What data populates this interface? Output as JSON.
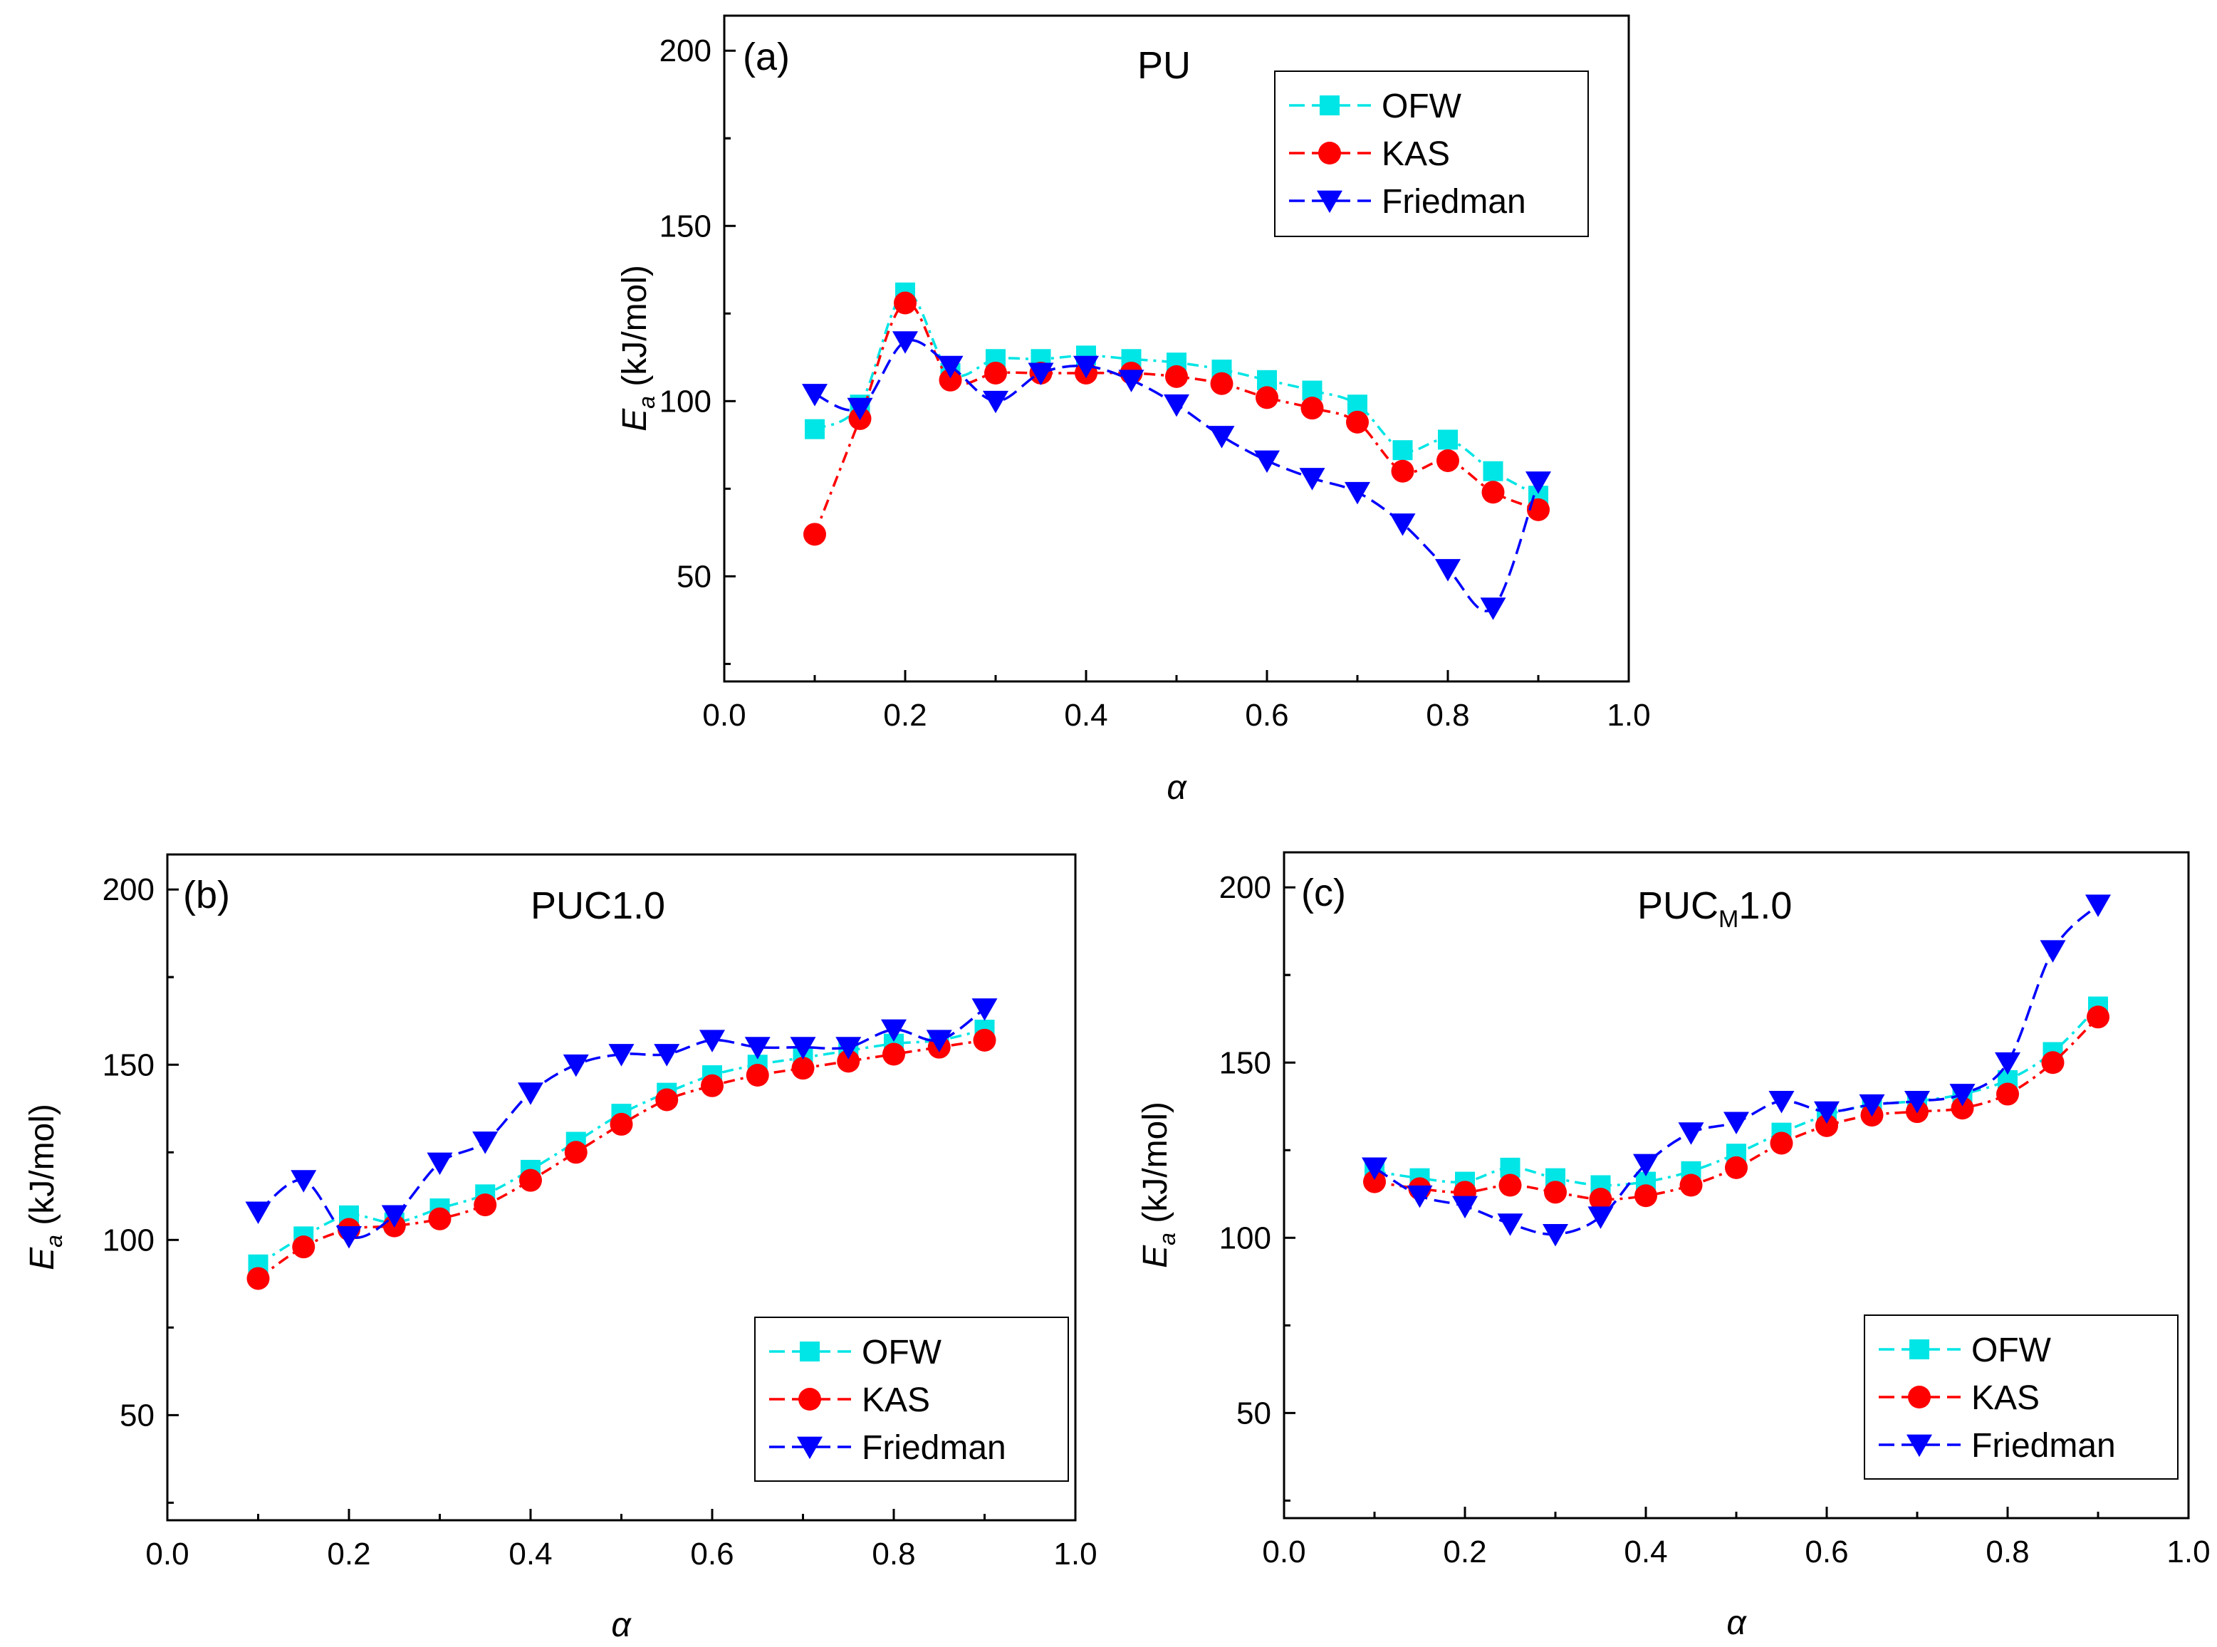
{
  "chart_data": [
    {
      "type": "line",
      "panel_label": "(a)",
      "title": "PU",
      "xlabel": "α",
      "ylabel_main": "E",
      "ylabel_sub": "a",
      "ylabel_unit": " (kJ/mol)",
      "xlim": [
        0.0,
        1.0
      ],
      "ylim": [
        20,
        210
      ],
      "xticks": [
        "0.0",
        "0.2",
        "0.4",
        "0.6",
        "0.8",
        "1.0"
      ],
      "yticks": [
        "50",
        "100",
        "150",
        "200"
      ],
      "legend": "top-right",
      "x": [
        0.1,
        0.15,
        0.2,
        0.25,
        0.3,
        0.35,
        0.4,
        0.45,
        0.5,
        0.55,
        0.6,
        0.65,
        0.7,
        0.75,
        0.8,
        0.85,
        0.9
      ],
      "series": [
        {
          "name": "OFW",
          "color": "#00e5e5",
          "marker": "square",
          "dash": "16 8 4 8",
          "values": [
            92,
            99,
            131,
            108,
            112,
            112,
            113,
            112,
            111,
            109,
            106,
            103,
            99,
            86,
            89,
            80,
            73
          ]
        },
        {
          "name": "KAS",
          "color": "#ff0000",
          "marker": "circle",
          "dash": "16 8 4 8",
          "values": [
            62,
            95,
            128,
            106,
            108,
            108,
            108,
            108,
            107,
            105,
            101,
            98,
            94,
            80,
            83,
            74,
            69
          ]
        },
        {
          "name": "Friedman",
          "color": "#0000ff",
          "marker": "triangle-down",
          "dash": "22 10",
          "values": [
            102,
            98,
            117,
            110,
            100,
            108,
            110,
            106,
            99,
            90,
            83,
            78,
            74,
            65,
            52,
            41,
            77
          ]
        }
      ]
    },
    {
      "type": "line",
      "panel_label": "(b)",
      "title": "PUC1.0",
      "xlabel": "α",
      "ylabel_main": "E",
      "ylabel_sub": "a",
      "ylabel_unit": " (kJ/mol)",
      "xlim": [
        0.0,
        1.0
      ],
      "ylim": [
        20,
        210
      ],
      "xticks": [
        "0.0",
        "0.2",
        "0.4",
        "0.6",
        "0.8",
        "1.0"
      ],
      "yticks": [
        "50",
        "100",
        "150",
        "200"
      ],
      "legend": "bottom-right",
      "x": [
        0.1,
        0.15,
        0.2,
        0.25,
        0.3,
        0.35,
        0.4,
        0.45,
        0.5,
        0.55,
        0.6,
        0.65,
        0.7,
        0.75,
        0.8,
        0.85,
        0.9
      ],
      "series": [
        {
          "name": "OFW",
          "color": "#00e5e5",
          "marker": "square",
          "dash": "16 8 4 8",
          "values": [
            93,
            101,
            107,
            105,
            109,
            113,
            120,
            128,
            136,
            142,
            147,
            150,
            152,
            154,
            156,
            157,
            160
          ]
        },
        {
          "name": "KAS",
          "color": "#ff0000",
          "marker": "circle",
          "dash": "16 8 4 8",
          "values": [
            89,
            98,
            103,
            104,
            106,
            110,
            117,
            125,
            133,
            140,
            144,
            147,
            149,
            151,
            153,
            155,
            157
          ]
        },
        {
          "name": "Friedman",
          "color": "#0000ff",
          "marker": "triangle-down",
          "dash": "22 10",
          "values": [
            108,
            117,
            101,
            107,
            122,
            128,
            142,
            150,
            153,
            153,
            157,
            155,
            155,
            155,
            160,
            157,
            166
          ]
        }
      ]
    },
    {
      "type": "line",
      "panel_label": "(c)",
      "title_main": "PUC",
      "title_sub": "M",
      "title_tail": "1.0",
      "xlabel": "α",
      "ylabel_main": "E",
      "ylabel_sub": "a",
      "ylabel_unit": " (kJ/mol)",
      "xlim": [
        0.0,
        1.0
      ],
      "ylim": [
        20,
        210
      ],
      "xticks": [
        "0.0",
        "0.2",
        "0.4",
        "0.6",
        "0.8",
        "1.0"
      ],
      "yticks": [
        "50",
        "100",
        "150",
        "200"
      ],
      "legend": "bottom-right",
      "x": [
        0.1,
        0.15,
        0.2,
        0.25,
        0.3,
        0.35,
        0.4,
        0.45,
        0.5,
        0.55,
        0.6,
        0.65,
        0.7,
        0.75,
        0.8,
        0.85,
        0.9
      ],
      "series": [
        {
          "name": "OFW",
          "color": "#00e5e5",
          "marker": "square",
          "dash": "16 8 4 8",
          "values": [
            119,
            117,
            116,
            120,
            117,
            115,
            116,
            119,
            124,
            130,
            135,
            138,
            139,
            141,
            145,
            153,
            166
          ]
        },
        {
          "name": "KAS",
          "color": "#ff0000",
          "marker": "circle",
          "dash": "16 8 4 8",
          "values": [
            116,
            114,
            113,
            115,
            113,
            111,
            112,
            115,
            120,
            127,
            132,
            135,
            136,
            137,
            141,
            150,
            163
          ]
        },
        {
          "name": "Friedman",
          "color": "#0000ff",
          "marker": "triangle-down",
          "dash": "22 10",
          "values": [
            120,
            112,
            109,
            104,
            101,
            106,
            121,
            130,
            133,
            139,
            136,
            138,
            139,
            141,
            150,
            182,
            195
          ]
        }
      ]
    }
  ]
}
